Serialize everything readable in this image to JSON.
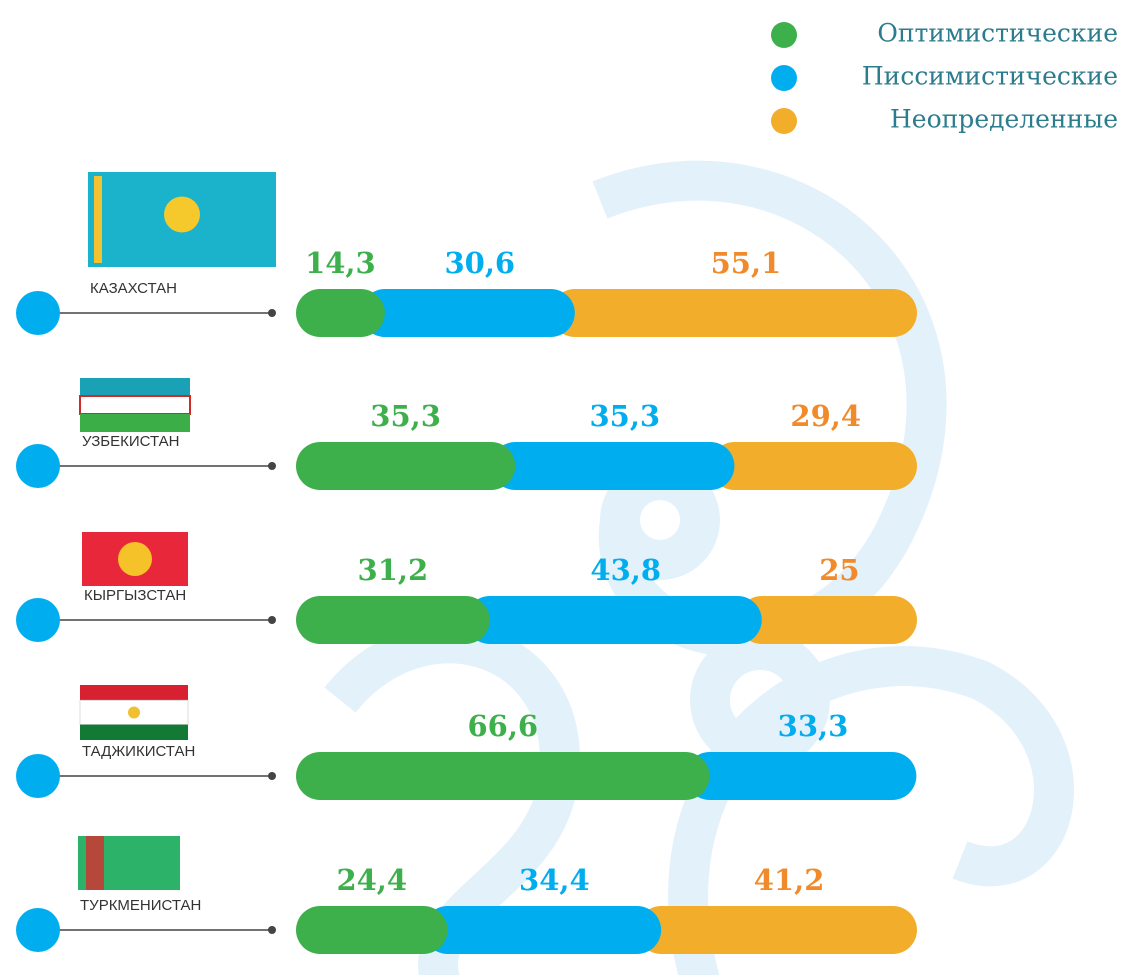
{
  "chart_data": {
    "type": "stacked-bar",
    "categories": [
      "КАЗАХСТАН",
      "УЗБЕКИСТАН",
      "КЫРГЫЗСТАН",
      "ТАДЖИКИСТАН",
      "ТУРКМЕНИСТАН"
    ],
    "series": [
      {
        "name": "Оптимистические",
        "color": "#3db04b",
        "label_color": "#3db04b",
        "values": [
          14.3,
          35.3,
          31.2,
          66.6,
          24.4
        ],
        "value_labels": [
          "14,3",
          "35,3",
          "31,2",
          "66,6",
          "24,4"
        ]
      },
      {
        "name": "Писсимистические",
        "color": "#00aeef",
        "label_color": "#00aeef",
        "values": [
          30.6,
          35.3,
          43.8,
          33.3,
          34.4
        ],
        "value_labels": [
          "30,6",
          "35,3",
          "43,8",
          "33,3",
          "34,4"
        ]
      },
      {
        "name": "Неопределенные",
        "color": "#f2ad2a",
        "label_color": "#f08a2a",
        "values": [
          55.1,
          29.4,
          25,
          null,
          41.2
        ],
        "value_labels": [
          "55,1",
          "29,4",
          "25",
          null,
          "41,2"
        ]
      }
    ],
    "xlim": [
      0,
      100
    ],
    "legend": "top-right"
  }
}
